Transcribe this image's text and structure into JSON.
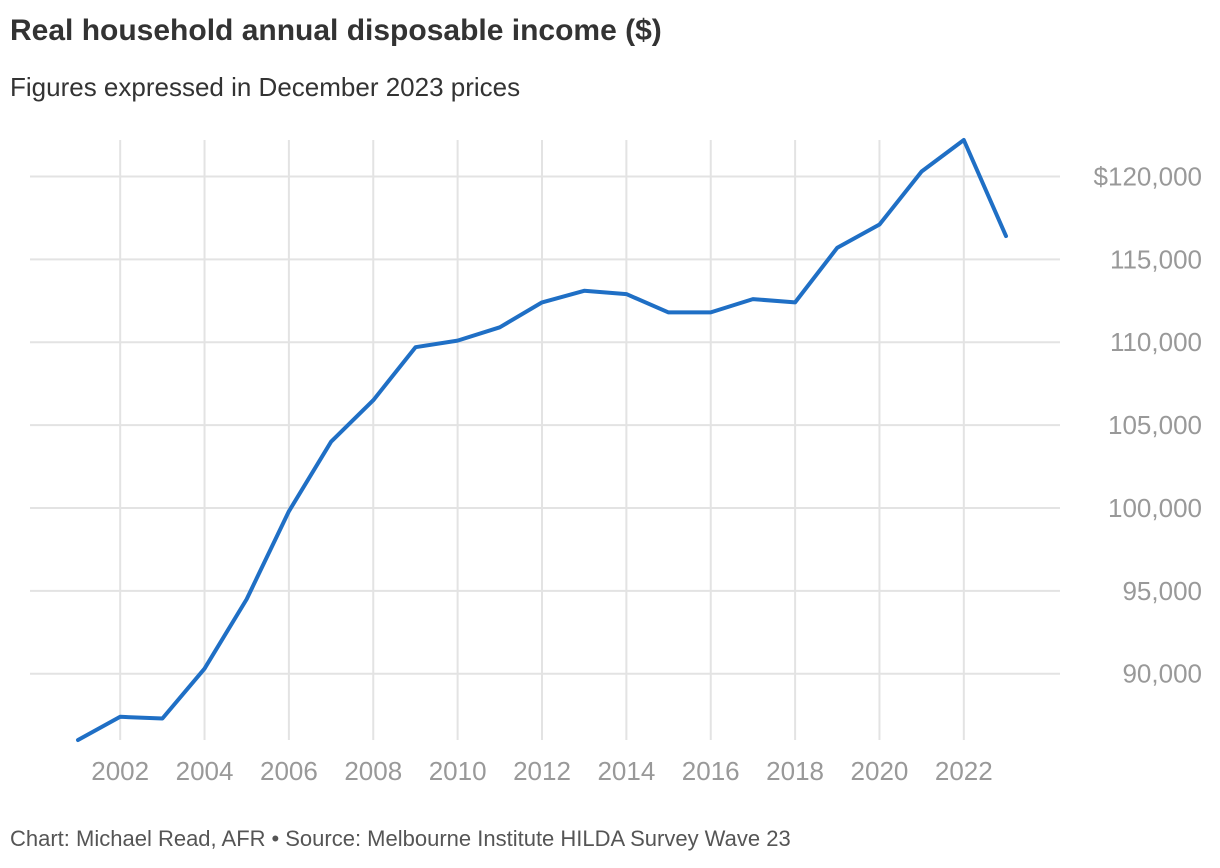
{
  "header": {
    "title": "Real household annual disposable income ($)",
    "subtitle": "Figures expressed in December 2023 prices"
  },
  "footer": {
    "credit": "Chart: Michael Read, AFR",
    "separator": "•",
    "source": "Source: Melbourne Institute HILDA Survey Wave 23"
  },
  "chart_data": {
    "type": "line",
    "title": "Real household annual disposable income ($)",
    "subtitle": "Figures expressed in December 2023 prices",
    "xlabel": "",
    "ylabel": "",
    "x": [
      2001,
      2002,
      2003,
      2004,
      2005,
      2006,
      2007,
      2008,
      2009,
      2010,
      2011,
      2012,
      2013,
      2014,
      2015,
      2016,
      2017,
      2018,
      2019,
      2020,
      2021,
      2022,
      2023
    ],
    "series": [
      {
        "name": "",
        "color": "#1f6fc5",
        "values": [
          86000,
          87400,
          87300,
          90300,
          94500,
          99800,
          104000,
          106500,
          109700,
          110100,
          110900,
          112400,
          113100,
          112900,
          111800,
          111800,
          112600,
          112400,
          115700,
          117100,
          120300,
          122200,
          116400
        ]
      }
    ],
    "xlim": [
      2001,
      2023
    ],
    "ylim": [
      86000,
      122200
    ],
    "x_ticks": [
      2002,
      2004,
      2006,
      2008,
      2010,
      2012,
      2014,
      2016,
      2018,
      2020,
      2022
    ],
    "x_tick_labels": [
      "2002",
      "2004",
      "2006",
      "2008",
      "2010",
      "2012",
      "2014",
      "2016",
      "2018",
      "2020",
      "2022"
    ],
    "y_ticks": [
      90000,
      95000,
      100000,
      105000,
      110000,
      115000,
      120000
    ],
    "y_tick_labels": [
      "90,000",
      "95,000",
      "100,000",
      "105,000",
      "110,000",
      "115,000",
      "$120,000"
    ],
    "y_axis_position": "right",
    "grid": true,
    "legend": "none",
    "colors": {
      "line": "#1f6fc5",
      "grid": "#e3e3e3",
      "tick_label": "#999999"
    }
  }
}
